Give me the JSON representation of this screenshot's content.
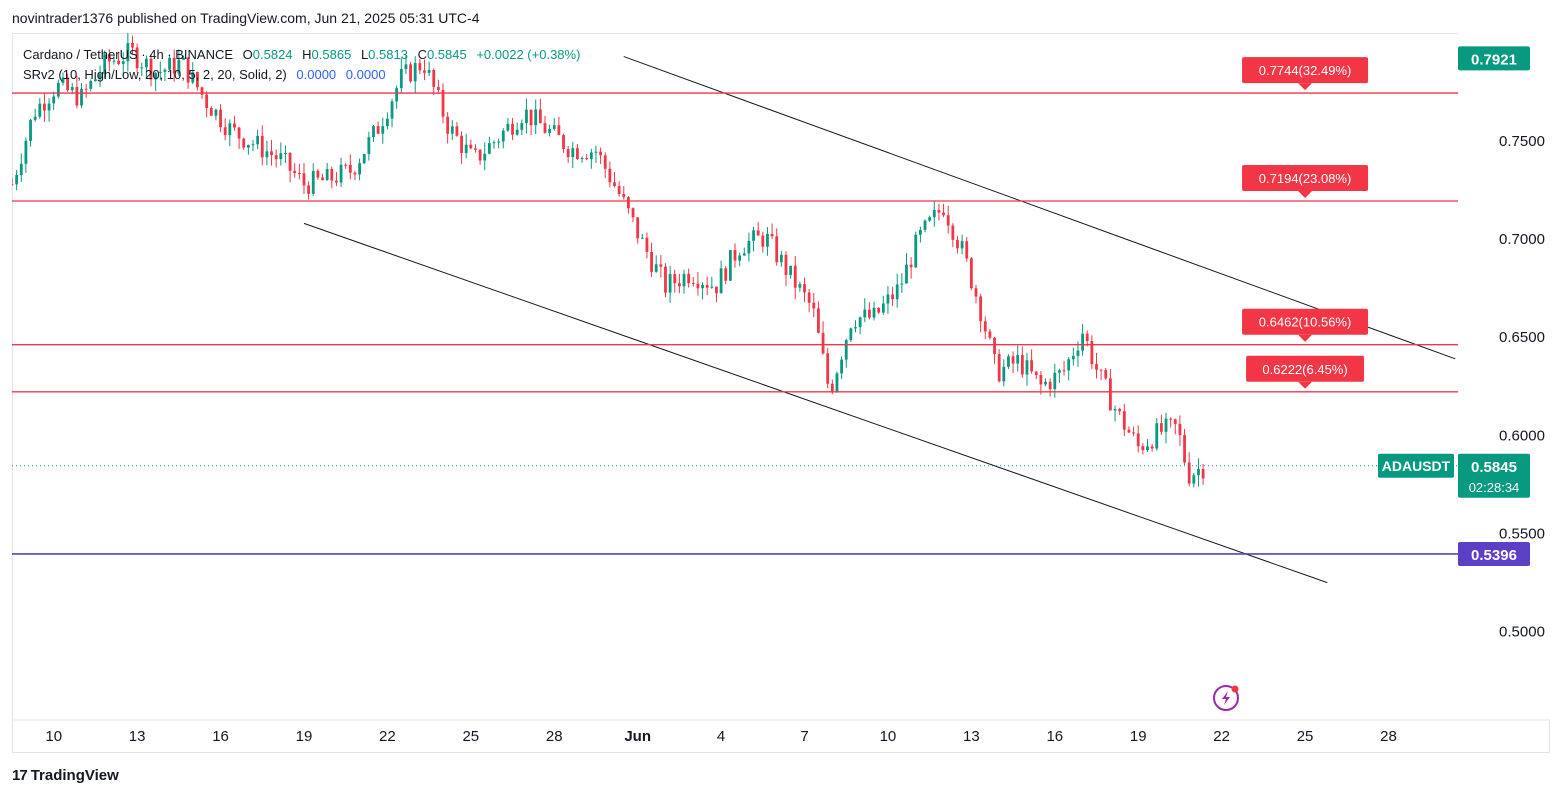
{
  "header": {
    "published_by": "novintrader1376 published on TradingView.com, Jun 21, 2025 05:31 UTC-4"
  },
  "legend": {
    "pair": "Cardano / TetherUS · 4h · BINANCE",
    "open_label": "O",
    "open": "0.5824",
    "high_label": "H",
    "high": "0.5865",
    "low_label": "L",
    "low": "0.5813",
    "close_label": "C",
    "close": "0.5845",
    "change": "+0.0022 (+0.38%)",
    "indicator": "SRv2 (10, High/Low, 20, 10, 5, 2, 20, Solid, 2)",
    "indicator_val1": "0.0000",
    "indicator_val2": "0.0000"
  },
  "footer": {
    "brand": "TradingView",
    "logo_mark": "17"
  },
  "chart_data": {
    "type": "candlestick",
    "symbol": "ADAUSDT",
    "ylim": [
      0.455,
      0.805
    ],
    "y_ticks": [
      "0.7500",
      "0.7000",
      "0.6500",
      "0.6000",
      "0.5500",
      "0.5000"
    ],
    "y_tick_values": [
      0.75,
      0.7,
      0.65,
      0.6,
      0.55,
      0.5
    ],
    "x_ticks": [
      "10",
      "13",
      "16",
      "19",
      "22",
      "25",
      "28",
      "Jun",
      "4",
      "7",
      "10",
      "13",
      "16",
      "19",
      "22",
      "25",
      "28"
    ],
    "x_tick_days": [
      10,
      13,
      16,
      19,
      22,
      25,
      28,
      31,
      34,
      37,
      40,
      43,
      46,
      49,
      52,
      55,
      58
    ],
    "x_day_range": [
      8.5,
      60.5
    ],
    "levels": [
      {
        "price": 0.7744,
        "label": "0.7744(32.49%)"
      },
      {
        "price": 0.7194,
        "label": "0.7194(23.08%)"
      },
      {
        "price": 0.6462,
        "label": "0.6462(10.56%)"
      },
      {
        "price": 0.6222,
        "label": "0.6222(6.45%)"
      }
    ],
    "support_level": {
      "price": 0.5396,
      "label": "0.5396"
    },
    "last_price": {
      "price": 0.5845,
      "label": "0.5845",
      "symbol_label": "ADAUSDT",
      "countdown": "02:28:34"
    },
    "top_price_tag": {
      "price": 0.7921,
      "label": "0.7921"
    },
    "channel_upper": {
      "start": [
        30.5,
        0.793
      ],
      "end": [
        60.4,
        0.639
      ]
    },
    "channel_lower": {
      "start": [
        19.0,
        0.708
      ],
      "end": [
        55.8,
        0.525
      ]
    },
    "waypoints": [
      [
        8.5,
        0.728
      ],
      [
        9.3,
        0.765
      ],
      [
        10.1,
        0.778
      ],
      [
        11.0,
        0.772
      ],
      [
        11.9,
        0.79
      ],
      [
        12.8,
        0.795
      ],
      [
        13.7,
        0.785
      ],
      [
        14.6,
        0.79
      ],
      [
        15.5,
        0.77
      ],
      [
        16.4,
        0.755
      ],
      [
        17.3,
        0.748
      ],
      [
        18.2,
        0.74
      ],
      [
        19.0,
        0.728
      ],
      [
        19.8,
        0.73
      ],
      [
        20.7,
        0.735
      ],
      [
        21.6,
        0.755
      ],
      [
        22.5,
        0.782
      ],
      [
        23.3,
        0.79
      ],
      [
        24.2,
        0.757
      ],
      [
        25.1,
        0.74
      ],
      [
        26.0,
        0.752
      ],
      [
        26.9,
        0.765
      ],
      [
        27.7,
        0.756
      ],
      [
        28.6,
        0.746
      ],
      [
        29.5,
        0.745
      ],
      [
        30.3,
        0.724
      ],
      [
        31.2,
        0.697
      ],
      [
        32.0,
        0.676
      ],
      [
        32.9,
        0.683
      ],
      [
        33.8,
        0.676
      ],
      [
        34.7,
        0.697
      ],
      [
        35.6,
        0.701
      ],
      [
        36.5,
        0.681
      ],
      [
        37.3,
        0.664
      ],
      [
        37.9,
        0.622
      ],
      [
        38.7,
        0.66
      ],
      [
        39.5,
        0.66
      ],
      [
        40.4,
        0.675
      ],
      [
        41.1,
        0.7
      ],
      [
        42.0,
        0.717
      ],
      [
        42.7,
        0.693
      ],
      [
        43.3,
        0.666
      ],
      [
        43.9,
        0.632
      ],
      [
        44.7,
        0.638
      ],
      [
        45.5,
        0.625
      ],
      [
        46.3,
        0.632
      ],
      [
        47.0,
        0.653
      ],
      [
        47.6,
        0.63
      ],
      [
        48.3,
        0.61
      ],
      [
        49.0,
        0.594
      ],
      [
        49.8,
        0.602
      ],
      [
        50.4,
        0.604
      ],
      [
        50.8,
        0.58
      ],
      [
        51.4,
        0.5845
      ]
    ]
  }
}
